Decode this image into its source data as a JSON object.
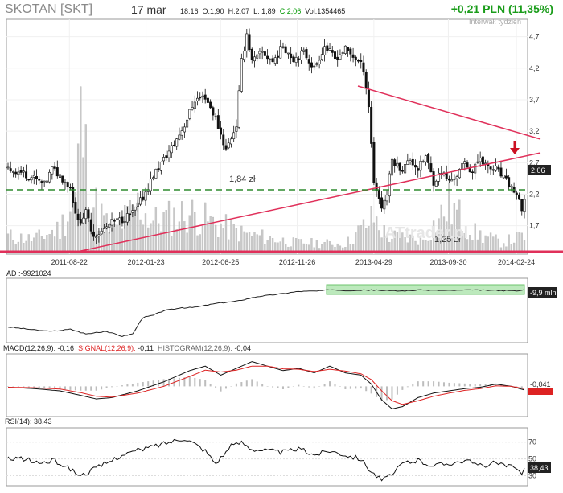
{
  "header": {
    "symbol": "SKOTAN [SKT]",
    "date": "17 mar",
    "time": "18:16",
    "open": "O:1,90",
    "high": "H:2,07",
    "low": "L: 1,89",
    "close": "C:2,06",
    "volume": "Vol:1354465",
    "change": "+0,21 PLN (11,35%)",
    "interval": "Interwał: tydzień"
  },
  "colors": {
    "up_green": "#1a9c1a",
    "trendline": "#e0305a",
    "support_dash": "#2e8b2e",
    "volume_bar": "#c8c8c8",
    "signal_red": "#dd2222",
    "highlight_green": "#9fe09f",
    "price_badge": "#222222"
  },
  "chart_data": [
    {
      "type": "candlestick",
      "title": "SKOTAN [SKT]",
      "x_ticks": [
        "2011-08-22",
        "2012-01-23",
        "2012-06-25",
        "2012-11-26",
        "2013-04-29",
        "2013-09-30",
        "2014-02-24"
      ],
      "y_ticks": [
        "1,7",
        "2,2",
        "2,7",
        "3,2",
        "3,7",
        "4,2",
        "4,7"
      ],
      "ylim": [
        1.3,
        4.95
      ],
      "last_price_label": "2,06",
      "annotations": [
        "1,84 zł",
        "1,25 zł"
      ],
      "support_level": 1.84,
      "bottom_level": 1.25,
      "watermark": "ATtrader.pl",
      "close_profile": [
        [
          0,
          2.6
        ],
        [
          5,
          2.55
        ],
        [
          10,
          2.45
        ],
        [
          14,
          2.35
        ],
        [
          17,
          2.6
        ],
        [
          20,
          2.5
        ],
        [
          24,
          2.3
        ],
        [
          27,
          1.75
        ],
        [
          30,
          1.9
        ],
        [
          33,
          1.55
        ],
        [
          36,
          1.6
        ],
        [
          40,
          1.75
        ],
        [
          44,
          1.8
        ],
        [
          48,
          1.9
        ],
        [
          52,
          2.15
        ],
        [
          56,
          2.5
        ],
        [
          60,
          2.75
        ],
        [
          64,
          3.0
        ],
        [
          68,
          3.3
        ],
        [
          72,
          3.7
        ],
        [
          76,
          3.75
        ],
        [
          80,
          3.4
        ],
        [
          84,
          2.9
        ],
        [
          88,
          3.3
        ],
        [
          90,
          4.3
        ],
        [
          92,
          4.75
        ],
        [
          94,
          4.3
        ],
        [
          98,
          4.45
        ],
        [
          102,
          4.3
        ],
        [
          106,
          4.55
        ],
        [
          110,
          4.35
        ],
        [
          114,
          4.45
        ],
        [
          118,
          4.2
        ],
        [
          122,
          4.55
        ],
        [
          126,
          4.35
        ],
        [
          130,
          4.5
        ],
        [
          134,
          4.35
        ],
        [
          137,
          4.2
        ],
        [
          139,
          3.6
        ],
        [
          141,
          2.4
        ],
        [
          144,
          2.0
        ],
        [
          146,
          2.2
        ],
        [
          148,
          2.75
        ],
        [
          150,
          2.65
        ],
        [
          152,
          2.6
        ],
        [
          155,
          2.75
        ],
        [
          158,
          2.6
        ],
        [
          161,
          2.8
        ],
        [
          164,
          2.4
        ],
        [
          167,
          2.55
        ],
        [
          170,
          2.4
        ],
        [
          173,
          2.5
        ],
        [
          176,
          2.7
        ],
        [
          179,
          2.55
        ],
        [
          182,
          2.8
        ],
        [
          185,
          2.6
        ],
        [
          188,
          2.6
        ],
        [
          191,
          2.45
        ],
        [
          194,
          2.3
        ],
        [
          196,
          2.2
        ],
        [
          198,
          1.92
        ],
        [
          199,
          2.06
        ]
      ],
      "volume_profile": [
        [
          0,
          0.1
        ],
        [
          10,
          0.08
        ],
        [
          20,
          0.15
        ],
        [
          26,
          0.35
        ],
        [
          28,
          0.85
        ],
        [
          32,
          0.35
        ],
        [
          40,
          0.12
        ],
        [
          50,
          0.3
        ],
        [
          56,
          0.2
        ],
        [
          70,
          0.25
        ],
        [
          80,
          0.18
        ],
        [
          90,
          0.12
        ],
        [
          110,
          0.06
        ],
        [
          130,
          0.05
        ],
        [
          141,
          0.22
        ],
        [
          146,
          0.1
        ],
        [
          160,
          0.08
        ],
        [
          170,
          0.3
        ],
        [
          180,
          0.12
        ],
        [
          190,
          0.06
        ],
        [
          199,
          0.1
        ]
      ]
    },
    {
      "type": "line",
      "title": "AD :-9921024",
      "last_value_label": "-9,9 mln",
      "series": [
        {
          "points": [
            [
              0,
              0.2
            ],
            [
              8,
              0.15
            ],
            [
              16,
              0.1
            ],
            [
              24,
              0.15
            ],
            [
              30,
              0.05
            ],
            [
              38,
              0.1
            ],
            [
              44,
              0.0
            ],
            [
              48,
              0.05
            ],
            [
              52,
              0.4
            ],
            [
              56,
              0.45
            ],
            [
              60,
              0.55
            ],
            [
              66,
              0.6
            ],
            [
              72,
              0.62
            ],
            [
              80,
              0.7
            ],
            [
              88,
              0.75
            ],
            [
              96,
              0.85
            ],
            [
              104,
              0.9
            ],
            [
              112,
              0.96
            ],
            [
              120,
              0.97
            ],
            [
              125,
              1.0
            ],
            [
              130,
              0.98
            ],
            [
              140,
              0.99
            ],
            [
              150,
              0.97
            ],
            [
              160,
              0.99
            ],
            [
              170,
              0.98
            ],
            [
              180,
              0.99
            ],
            [
              190,
              0.98
            ],
            [
              196,
              0.97
            ],
            [
              199,
              0.99
            ]
          ]
        }
      ]
    },
    {
      "type": "line",
      "title": "MACD(12,26,9):",
      "series": [
        {
          "name": "MACD(12,26,9)",
          "value": "-0,16",
          "points": [
            [
              0,
              -0.02
            ],
            [
              10,
              -0.05
            ],
            [
              20,
              -0.1
            ],
            [
              28,
              -0.2
            ],
            [
              34,
              -0.28
            ],
            [
              40,
              -0.25
            ],
            [
              50,
              -0.1
            ],
            [
              60,
              0.1
            ],
            [
              70,
              0.35
            ],
            [
              76,
              0.45
            ],
            [
              82,
              0.25
            ],
            [
              88,
              0.4
            ],
            [
              94,
              0.55
            ],
            [
              100,
              0.45
            ],
            [
              106,
              0.35
            ],
            [
              112,
              0.4
            ],
            [
              118,
              0.3
            ],
            [
              124,
              0.45
            ],
            [
              130,
              0.3
            ],
            [
              136,
              0.25
            ],
            [
              140,
              0.05
            ],
            [
              144,
              -0.3
            ],
            [
              148,
              -0.5
            ],
            [
              152,
              -0.45
            ],
            [
              158,
              -0.25
            ],
            [
              164,
              -0.15
            ],
            [
              170,
              -0.1
            ],
            [
              176,
              -0.05
            ],
            [
              182,
              -0.02
            ],
            [
              188,
              0.05
            ],
            [
              194,
              0.0
            ],
            [
              199,
              -0.08
            ]
          ]
        },
        {
          "name": "SIGNAL(12,26,9)",
          "value": "-0,11",
          "points": [
            [
              0,
              -0.02
            ],
            [
              10,
              -0.03
            ],
            [
              20,
              -0.06
            ],
            [
              28,
              -0.14
            ],
            [
              34,
              -0.22
            ],
            [
              40,
              -0.24
            ],
            [
              50,
              -0.15
            ],
            [
              60,
              0.0
            ],
            [
              70,
              0.22
            ],
            [
              76,
              0.36
            ],
            [
              82,
              0.32
            ],
            [
              88,
              0.36
            ],
            [
              94,
              0.45
            ],
            [
              100,
              0.45
            ],
            [
              106,
              0.39
            ],
            [
              112,
              0.38
            ],
            [
              118,
              0.33
            ],
            [
              124,
              0.38
            ],
            [
              130,
              0.34
            ],
            [
              136,
              0.28
            ],
            [
              140,
              0.15
            ],
            [
              144,
              -0.1
            ],
            [
              148,
              -0.32
            ],
            [
              152,
              -0.4
            ],
            [
              158,
              -0.32
            ],
            [
              164,
              -0.22
            ],
            [
              170,
              -0.15
            ],
            [
              176,
              -0.09
            ],
            [
              182,
              -0.05
            ],
            [
              188,
              0.01
            ],
            [
              194,
              0.0
            ],
            [
              199,
              -0.05
            ]
          ]
        },
        {
          "name": "HISTOGRAM(12,26,9)",
          "value": "-0,04"
        }
      ],
      "last_value_label": "-0,041"
    },
    {
      "type": "line",
      "title": "RSI(14):",
      "value": "38,43",
      "y_ticks": [
        "70",
        "50",
        "30"
      ],
      "ylim": [
        20,
        85
      ],
      "last_value_label": "38,43",
      "series": [
        {
          "points": [
            [
              0,
              52
            ],
            [
              6,
              50
            ],
            [
              12,
              45
            ],
            [
              18,
              48
            ],
            [
              24,
              38
            ],
            [
              28,
              30
            ],
            [
              32,
              36
            ],
            [
              38,
              45
            ],
            [
              44,
              55
            ],
            [
              50,
              60
            ],
            [
              56,
              65
            ],
            [
              62,
              70
            ],
            [
              68,
              75
            ],
            [
              72,
              68
            ],
            [
              76,
              60
            ],
            [
              80,
              45
            ],
            [
              86,
              65
            ],
            [
              90,
              70
            ],
            [
              94,
              62
            ],
            [
              100,
              60
            ],
            [
              106,
              58
            ],
            [
              112,
              62
            ],
            [
              118,
              55
            ],
            [
              124,
              60
            ],
            [
              130,
              55
            ],
            [
              136,
              50
            ],
            [
              140,
              35
            ],
            [
              144,
              25
            ],
            [
              148,
              30
            ],
            [
              152,
              45
            ],
            [
              158,
              48
            ],
            [
              164,
              42
            ],
            [
              170,
              45
            ],
            [
              176,
              48
            ],
            [
              182,
              42
            ],
            [
              188,
              45
            ],
            [
              194,
              40
            ],
            [
              198,
              33
            ],
            [
              199,
              38
            ]
          ]
        }
      ]
    }
  ]
}
